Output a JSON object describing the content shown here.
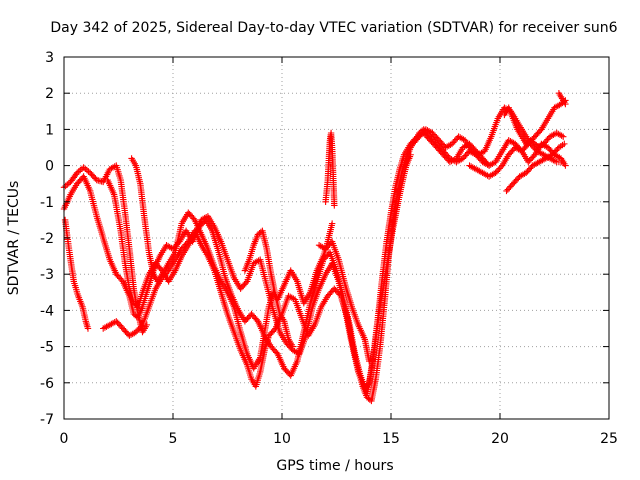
{
  "chart_data": {
    "type": "scatter",
    "title": "Day 342 of 2025, Sidereal Day-to-day VTEC variation (SDTVAR) for receiver sun6",
    "xlabel": "GPS time / hours",
    "ylabel": "SDTVAR / TECUs",
    "xlim": [
      0,
      25
    ],
    "ylim": [
      -7,
      3
    ],
    "xticks": [
      "0",
      "5",
      "10",
      "15",
      "20",
      "25"
    ],
    "yticks": [
      "-7",
      "-6",
      "-5",
      "-4",
      "-3",
      "-2",
      "-1",
      "0",
      "1",
      "2",
      "3"
    ],
    "grid": true,
    "marker": "+",
    "series_color": "#ff0000",
    "tracks": [
      [
        [
          0.0,
          -0.6
        ],
        [
          0.3,
          -0.45
        ],
        [
          0.6,
          -0.2
        ],
        [
          0.9,
          -0.05
        ],
        [
          1.2,
          -0.2
        ],
        [
          1.5,
          -0.4
        ],
        [
          1.8,
          -0.45
        ],
        [
          2.1,
          -0.1
        ],
        [
          2.4,
          0.0
        ],
        [
          2.6,
          -0.4
        ],
        [
          2.8,
          -1.3
        ],
        [
          3.0,
          -2.3
        ],
        [
          3.2,
          -3.4
        ],
        [
          3.4,
          -4.1
        ],
        [
          3.6,
          -4.6
        ],
        [
          3.8,
          -4.4
        ]
      ],
      [
        [
          0.05,
          -1.5
        ],
        [
          0.25,
          -2.4
        ],
        [
          0.45,
          -3.2
        ],
        [
          0.65,
          -3.6
        ],
        [
          0.85,
          -3.9
        ],
        [
          1.0,
          -4.3
        ],
        [
          1.1,
          -4.5
        ]
      ],
      [
        [
          0.0,
          -1.2
        ],
        [
          0.3,
          -0.8
        ],
        [
          0.6,
          -0.5
        ],
        [
          0.9,
          -0.3
        ],
        [
          1.2,
          -0.7
        ],
        [
          1.5,
          -1.4
        ],
        [
          1.8,
          -2.0
        ],
        [
          2.1,
          -2.6
        ],
        [
          2.4,
          -3.0
        ],
        [
          2.7,
          -3.2
        ],
        [
          3.0,
          -3.6
        ],
        [
          3.2,
          -4.1
        ],
        [
          3.4,
          -4.2
        ],
        [
          3.6,
          -3.9
        ],
        [
          3.8,
          -3.5
        ],
        [
          4.1,
          -2.9
        ],
        [
          4.4,
          -2.5
        ],
        [
          4.7,
          -2.2
        ],
        [
          5.0,
          -2.3
        ],
        [
          5.3,
          -2.1
        ],
        [
          5.6,
          -1.8
        ],
        [
          5.9,
          -2.1
        ],
        [
          6.2,
          -1.7
        ],
        [
          6.5,
          -1.5
        ],
        [
          6.8,
          -1.8
        ],
        [
          7.1,
          -2.4
        ],
        [
          7.4,
          -3.1
        ],
        [
          7.7,
          -3.6
        ],
        [
          8.0,
          -4.0
        ],
        [
          8.3,
          -4.3
        ],
        [
          8.6,
          -4.1
        ],
        [
          8.9,
          -4.3
        ],
        [
          9.2,
          -4.7
        ],
        [
          9.5,
          -5.0
        ],
        [
          9.8,
          -5.2
        ],
        [
          10.1,
          -5.6
        ],
        [
          10.4,
          -5.8
        ],
        [
          10.7,
          -5.4
        ],
        [
          11.0,
          -4.6
        ],
        [
          11.3,
          -3.8
        ],
        [
          11.6,
          -3.2
        ],
        [
          11.9,
          -2.6
        ],
        [
          12.2,
          -2.4
        ],
        [
          12.5,
          -2.9
        ],
        [
          12.8,
          -3.6
        ],
        [
          13.1,
          -4.4
        ],
        [
          13.4,
          -5.4
        ],
        [
          13.7,
          -6.1
        ],
        [
          13.9,
          -6.4
        ],
        [
          14.1,
          -6.5
        ],
        [
          14.3,
          -5.9
        ],
        [
          14.5,
          -5.0
        ],
        [
          14.7,
          -3.8
        ],
        [
          14.9,
          -2.5
        ],
        [
          15.1,
          -1.5
        ],
        [
          15.3,
          -0.8
        ],
        [
          15.5,
          -0.2
        ],
        [
          15.7,
          0.2
        ],
        [
          15.9,
          0.5
        ],
        [
          16.1,
          0.7
        ],
        [
          16.3,
          0.9
        ],
        [
          16.5,
          1.0
        ],
        [
          16.8,
          0.8
        ],
        [
          17.1,
          0.6
        ],
        [
          17.4,
          0.4
        ],
        [
          17.7,
          0.2
        ],
        [
          18.0,
          0.1
        ],
        [
          18.3,
          0.2
        ],
        [
          18.6,
          0.4
        ],
        [
          18.9,
          0.3
        ],
        [
          19.2,
          0.1
        ],
        [
          19.5,
          0.0
        ],
        [
          19.8,
          0.1
        ],
        [
          20.1,
          0.4
        ],
        [
          20.4,
          0.7
        ],
        [
          20.7,
          0.6
        ],
        [
          21.0,
          0.4
        ],
        [
          21.3,
          0.1
        ],
        [
          21.6,
          0.3
        ],
        [
          21.9,
          0.6
        ],
        [
          22.2,
          0.5
        ],
        [
          22.5,
          0.3
        ],
        [
          22.8,
          0.2
        ],
        [
          23.0,
          0.0
        ]
      ],
      [
        [
          2.0,
          -0.4
        ],
        [
          2.3,
          -0.8
        ],
        [
          2.6,
          -1.8
        ],
        [
          2.8,
          -2.7
        ],
        [
          3.0,
          -3.4
        ],
        [
          3.2,
          -3.8
        ],
        [
          3.4,
          -3.9
        ],
        [
          3.6,
          -3.5
        ],
        [
          3.9,
          -3.0
        ],
        [
          4.2,
          -2.7
        ],
        [
          4.5,
          -2.9
        ],
        [
          4.8,
          -3.2
        ],
        [
          5.1,
          -2.9
        ],
        [
          5.4,
          -2.5
        ],
        [
          5.7,
          -2.2
        ],
        [
          6.0,
          -1.9
        ],
        [
          6.3,
          -1.5
        ],
        [
          6.6,
          -1.4
        ],
        [
          6.9,
          -1.7
        ],
        [
          7.2,
          -2.1
        ],
        [
          7.5,
          -2.6
        ],
        [
          7.8,
          -3.1
        ],
        [
          8.1,
          -3.4
        ],
        [
          8.4,
          -3.2
        ],
        [
          8.7,
          -2.7
        ],
        [
          9.0,
          -2.6
        ],
        [
          9.3,
          -3.3
        ],
        [
          9.6,
          -4.0
        ],
        [
          9.9,
          -4.6
        ],
        [
          10.2,
          -4.9
        ],
        [
          10.5,
          -5.1
        ],
        [
          10.8,
          -5.2
        ],
        [
          11.1,
          -4.7
        ],
        [
          11.4,
          -3.9
        ],
        [
          11.7,
          -3.4
        ],
        [
          12.0,
          -3.0
        ],
        [
          12.3,
          -2.7
        ],
        [
          12.6,
          -3.2
        ],
        [
          12.9,
          -4.0
        ],
        [
          13.2,
          -4.9
        ],
        [
          13.5,
          -5.7
        ],
        [
          13.8,
          -6.2
        ],
        [
          14.0,
          -6.0
        ],
        [
          14.2,
          -5.2
        ],
        [
          14.4,
          -4.2
        ],
        [
          14.6,
          -3.1
        ],
        [
          14.8,
          -2.1
        ],
        [
          15.0,
          -1.3
        ],
        [
          15.2,
          -0.6
        ],
        [
          15.4,
          -0.1
        ],
        [
          15.6,
          0.3
        ],
        [
          15.9,
          0.6
        ],
        [
          16.2,
          0.8
        ],
        [
          16.5,
          0.9
        ],
        [
          16.8,
          0.7
        ],
        [
          17.1,
          0.5
        ],
        [
          17.4,
          0.3
        ],
        [
          17.7,
          0.1
        ],
        [
          18.0,
          0.2
        ],
        [
          18.3,
          0.5
        ],
        [
          18.6,
          0.6
        ],
        [
          18.9,
          0.4
        ],
        [
          19.2,
          0.2
        ],
        [
          19.5,
          0.0
        ]
      ],
      [
        [
          1.8,
          -4.5
        ],
        [
          2.1,
          -4.4
        ],
        [
          2.4,
          -4.3
        ],
        [
          2.7,
          -4.5
        ],
        [
          3.0,
          -4.7
        ],
        [
          3.3,
          -4.6
        ],
        [
          3.6,
          -4.4
        ],
        [
          3.9,
          -3.9
        ],
        [
          4.2,
          -3.4
        ],
        [
          4.5,
          -3.1
        ],
        [
          4.8,
          -2.9
        ],
        [
          5.1,
          -2.6
        ],
        [
          5.4,
          -2.3
        ],
        [
          5.7,
          -2.1
        ],
        [
          6.0,
          -1.8
        ],
        [
          6.3,
          -2.2
        ],
        [
          6.6,
          -2.5
        ],
        [
          6.9,
          -2.9
        ],
        [
          7.2,
          -3.5
        ],
        [
          7.5,
          -4.1
        ],
        [
          7.8,
          -4.6
        ],
        [
          8.1,
          -5.1
        ],
        [
          8.4,
          -5.5
        ],
        [
          8.6,
          -5.9
        ],
        [
          8.8,
          -6.1
        ],
        [
          9.0,
          -5.7
        ],
        [
          9.2,
          -5.1
        ],
        [
          9.4,
          -4.7
        ],
        [
          9.7,
          -4.5
        ],
        [
          10.0,
          -4.1
        ],
        [
          10.3,
          -3.6
        ],
        [
          10.6,
          -3.7
        ],
        [
          10.9,
          -4.2
        ],
        [
          11.2,
          -4.7
        ],
        [
          11.5,
          -4.4
        ],
        [
          11.8,
          -3.9
        ],
        [
          12.1,
          -3.6
        ],
        [
          12.4,
          -3.4
        ],
        [
          12.7,
          -3.6
        ],
        [
          13.0,
          -4.2
        ],
        [
          13.3,
          -5.1
        ],
        [
          13.6,
          -5.8
        ],
        [
          13.9,
          -6.3
        ],
        [
          14.1,
          -5.7
        ],
        [
          14.3,
          -4.8
        ],
        [
          14.5,
          -3.9
        ],
        [
          14.7,
          -3.2
        ],
        [
          14.9,
          -2.4
        ],
        [
          15.1,
          -1.7
        ],
        [
          15.3,
          -1.1
        ],
        [
          15.5,
          -0.5
        ],
        [
          15.7,
          0.0
        ],
        [
          15.9,
          0.3
        ]
      ],
      [
        [
          3.1,
          0.2
        ],
        [
          3.3,
          0.0
        ],
        [
          3.5,
          -0.5
        ],
        [
          3.7,
          -1.5
        ],
        [
          3.9,
          -2.4
        ],
        [
          4.1,
          -3.0
        ],
        [
          4.3,
          -3.2
        ],
        [
          4.5,
          -3.0
        ],
        [
          4.8,
          -2.7
        ],
        [
          5.1,
          -2.4
        ],
        [
          5.4,
          -1.6
        ],
        [
          5.7,
          -1.3
        ],
        [
          6.0,
          -1.5
        ],
        [
          6.3,
          -1.9
        ],
        [
          6.6,
          -2.3
        ],
        [
          6.9,
          -2.8
        ],
        [
          7.2,
          -3.2
        ],
        [
          7.5,
          -3.5
        ],
        [
          7.8,
          -3.9
        ],
        [
          8.1,
          -4.6
        ],
        [
          8.4,
          -5.2
        ],
        [
          8.7,
          -5.6
        ],
        [
          9.0,
          -5.3
        ],
        [
          9.2,
          -4.6
        ],
        [
          9.4,
          -3.9
        ],
        [
          9.6,
          -3.5
        ],
        [
          9.8,
          -3.7
        ],
        [
          10.1,
          -3.3
        ],
        [
          10.4,
          -2.9
        ],
        [
          10.7,
          -3.2
        ],
        [
          11.0,
          -3.8
        ],
        [
          11.3,
          -3.5
        ],
        [
          11.6,
          -2.9
        ],
        [
          11.9,
          -2.5
        ],
        [
          12.1,
          -2.1
        ],
        [
          12.3,
          -1.6
        ]
      ],
      [
        [
          8.3,
          -2.9
        ],
        [
          8.5,
          -2.6
        ],
        [
          8.7,
          -2.2
        ],
        [
          8.9,
          -1.9
        ],
        [
          9.1,
          -1.8
        ],
        [
          9.3,
          -2.3
        ],
        [
          9.5,
          -3.0
        ],
        [
          9.7,
          -3.6
        ],
        [
          9.9,
          -4.1
        ],
        [
          10.1,
          -4.3
        ],
        [
          10.3,
          -4.8
        ],
        [
          10.5,
          -5.0
        ]
      ],
      [
        [
          12.0,
          -1.0
        ],
        [
          12.1,
          -0.4
        ],
        [
          12.15,
          0.2
        ],
        [
          12.2,
          0.7
        ],
        [
          12.25,
          0.9
        ],
        [
          12.3,
          0.5
        ],
        [
          12.35,
          -0.3
        ],
        [
          12.4,
          -1.1
        ]
      ],
      [
        [
          11.7,
          -2.2
        ],
        [
          12.0,
          -2.3
        ],
        [
          12.3,
          -2.1
        ],
        [
          12.6,
          -2.6
        ],
        [
          12.9,
          -3.3
        ],
        [
          13.2,
          -3.9
        ],
        [
          13.5,
          -4.4
        ],
        [
          13.8,
          -4.8
        ],
        [
          14.0,
          -5.4
        ]
      ],
      [
        [
          16.0,
          0.6
        ],
        [
          16.3,
          0.8
        ],
        [
          16.6,
          1.0
        ],
        [
          16.9,
          0.9
        ],
        [
          17.2,
          0.7
        ],
        [
          17.5,
          0.5
        ],
        [
          17.8,
          0.6
        ],
        [
          18.1,
          0.8
        ],
        [
          18.4,
          0.7
        ],
        [
          18.7,
          0.4
        ],
        [
          19.0,
          0.3
        ],
        [
          19.3,
          0.4
        ],
        [
          19.6,
          0.8
        ],
        [
          19.9,
          1.3
        ],
        [
          20.2,
          1.6
        ],
        [
          20.5,
          1.5
        ],
        [
          20.8,
          1.2
        ],
        [
          21.1,
          0.9
        ],
        [
          21.4,
          0.6
        ],
        [
          21.7,
          0.4
        ],
        [
          22.0,
          0.3
        ],
        [
          22.3,
          0.2
        ],
        [
          22.6,
          0.1
        ],
        [
          22.9,
          0.1
        ]
      ],
      [
        [
          18.6,
          0.0
        ],
        [
          18.9,
          -0.1
        ],
        [
          19.2,
          -0.2
        ],
        [
          19.5,
          -0.3
        ],
        [
          19.8,
          -0.2
        ],
        [
          20.1,
          0.0
        ],
        [
          20.4,
          0.3
        ],
        [
          20.7,
          0.5
        ],
        [
          21.0,
          0.4
        ],
        [
          21.3,
          0.6
        ],
        [
          21.6,
          0.8
        ],
        [
          21.9,
          1.0
        ],
        [
          22.2,
          1.3
        ],
        [
          22.5,
          1.6
        ],
        [
          22.8,
          1.7
        ],
        [
          23.0,
          1.8
        ]
      ],
      [
        [
          20.2,
          1.4
        ],
        [
          20.4,
          1.6
        ],
        [
          20.6,
          1.3
        ],
        [
          20.8,
          1.0
        ],
        [
          21.0,
          0.8
        ],
        [
          21.2,
          0.6
        ],
        [
          21.4,
          0.7
        ],
        [
          21.6,
          0.6
        ],
        [
          21.8,
          0.5
        ],
        [
          22.0,
          0.6
        ],
        [
          22.3,
          0.8
        ],
        [
          22.6,
          0.9
        ],
        [
          22.9,
          0.8
        ]
      ],
      [
        [
          20.3,
          -0.7
        ],
        [
          20.6,
          -0.5
        ],
        [
          20.9,
          -0.3
        ],
        [
          21.2,
          -0.2
        ],
        [
          21.5,
          0.0
        ],
        [
          21.8,
          0.1
        ],
        [
          22.1,
          0.2
        ],
        [
          22.4,
          0.3
        ],
        [
          22.7,
          0.5
        ],
        [
          22.95,
          0.6
        ]
      ],
      [
        [
          22.7,
          2.0
        ],
        [
          22.8,
          1.9
        ],
        [
          22.9,
          1.8
        ],
        [
          23.0,
          1.7
        ]
      ]
    ]
  }
}
